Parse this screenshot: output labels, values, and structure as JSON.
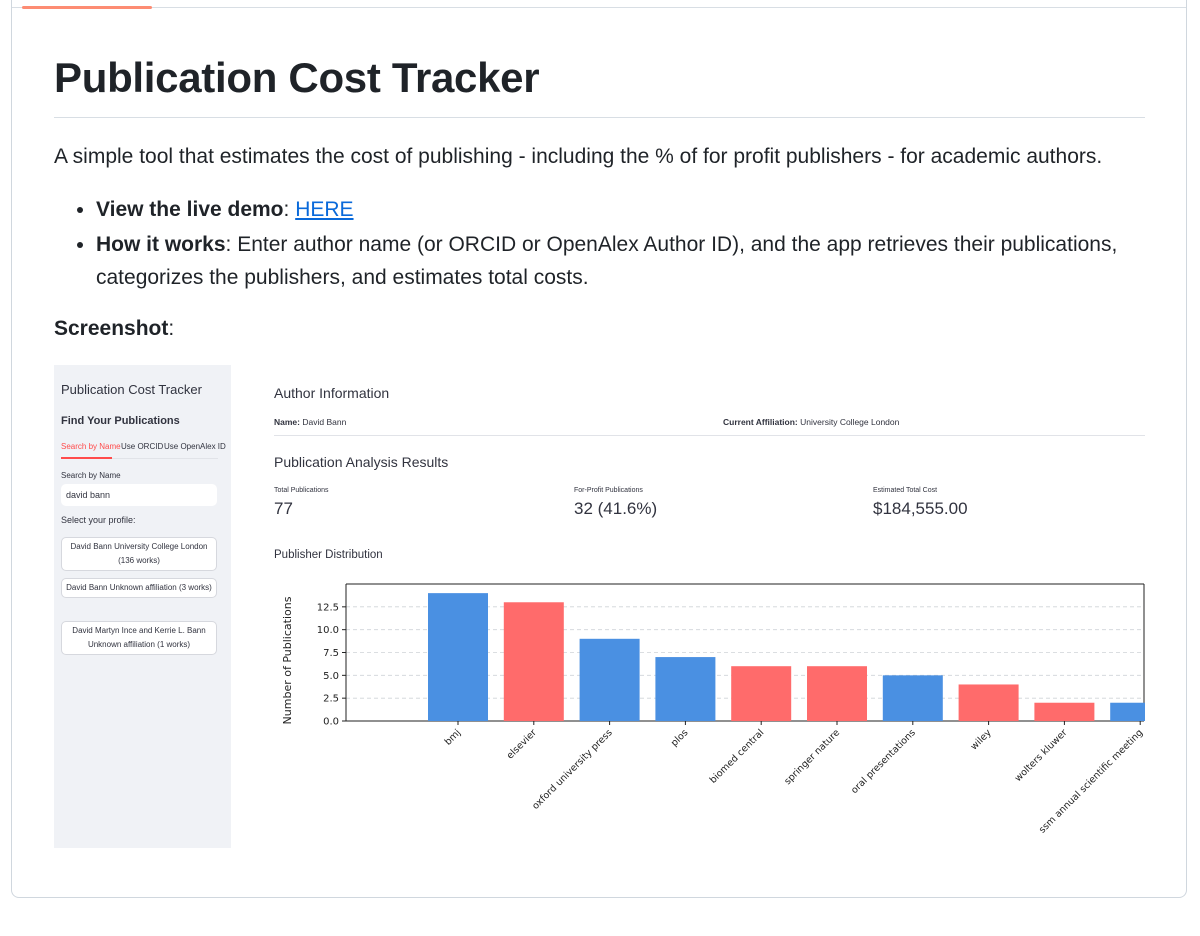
{
  "readme": {
    "title": "Publication Cost Tracker",
    "intro": "A simple tool that estimates the cost of publishing - including the % of for profit publishers - for academic authors.",
    "bullets": [
      {
        "label": "View the live demo",
        "sep": ": ",
        "link": "HERE"
      },
      {
        "label": "How it works",
        "sep": ": ",
        "text": "Enter author name (or ORCID or OpenAlex Author ID), and the app retrieves their publications, categorizes the publishers, and estimates total costs."
      }
    ],
    "screenshot_label": "Screenshot",
    "screenshot_colon": ":"
  },
  "sidebar": {
    "title": "Publication Cost Tracker",
    "subtitle": "Find Your Publications",
    "tabs": [
      "Search by Name",
      "Use ORCID",
      "Use OpenAlex ID"
    ],
    "search_label": "Search by Name",
    "search_value": "david bann",
    "profile_label": "Select your profile:",
    "profiles": [
      "David Bann University College London (136 works)",
      "David Bann Unknown affiliation (3 works)",
      "David Martyn Ince and Kerrie L. Bann Unknown affiliation (1 works)"
    ]
  },
  "author": {
    "section_title": "Author Information",
    "name_key": "Name:",
    "name_value": "David Bann",
    "affil_key": "Current Affiliation:",
    "affil_value": "University College London"
  },
  "results": {
    "section_title": "Publication Analysis Results",
    "metrics": [
      {
        "label": "Total Publications",
        "value": "77"
      },
      {
        "label": "For-Profit Publications",
        "value": "32 (41.6%)"
      },
      {
        "label": "Estimated Total Cost",
        "value": "$184,555.00"
      }
    ],
    "distribution_title": "Publisher Distribution"
  },
  "colors": {
    "for_profit": "#ff6b6b",
    "non_profit": "#4a90e2",
    "link": "#0969da",
    "accent": "#ff4b4b"
  },
  "chart_data": {
    "type": "bar",
    "categories": [
      "bmj",
      "elsevier",
      "oxford university press",
      "plos",
      "biomed central",
      "springer nature",
      "oral presentations",
      "wiley",
      "wolters kluwer",
      "ssm annual scientific meeting"
    ],
    "values": [
      14,
      13,
      9,
      7,
      6,
      6,
      5,
      4,
      2,
      2
    ],
    "for_profit": [
      false,
      true,
      false,
      false,
      true,
      true,
      false,
      true,
      true,
      false
    ],
    "ylabel": "Number of Publications",
    "xlabel": "",
    "ylim": [
      0,
      15
    ],
    "yticks": [
      0.0,
      2.5,
      5.0,
      7.5,
      10.0,
      12.5
    ],
    "ytick_labels": [
      "0.0",
      "2.5",
      "5.0",
      "7.5",
      "10.0",
      "12.5"
    ],
    "grid": "horizontal-dashed"
  }
}
